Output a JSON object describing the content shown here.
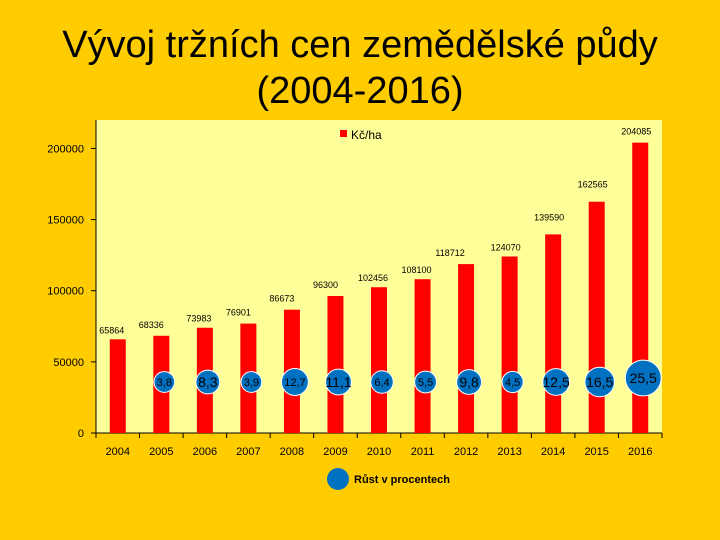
{
  "slide": {
    "title_line1": "Vývoj tržních cen zemědělské půdy",
    "title_line2": "(2004-2016)"
  },
  "colors": {
    "background": "#FFCC00",
    "plot_area": "#FFFF99",
    "bar": "#FF0000",
    "bubble": "#0070C0",
    "bubble_stroke": "#FFFFFF"
  },
  "chart_data": {
    "type": "bar",
    "categories": [
      "2004",
      "2005",
      "2006",
      "2007",
      "2008",
      "2009",
      "2010",
      "2011",
      "2012",
      "2013",
      "2014",
      "2015",
      "2016"
    ],
    "series": [
      {
        "name": "Kč/ha",
        "values": [
          65864,
          68336,
          73983,
          76901,
          86673,
          96300,
          102456,
          108100,
          118712,
          124070,
          139590,
          162565,
          204085
        ]
      }
    ],
    "value_labels": [
      "65864",
      "68336",
      "73983",
      "76901",
      "86673",
      "96300",
      "102456",
      "108100",
      "118712",
      "124070",
      "139590",
      "162565",
      "204085"
    ],
    "growth_labels": [
      "3,8",
      "8,3",
      "3,9",
      "12,7",
      "11,1",
      "6,4",
      "5,5",
      "9,8",
      "4,5",
      "12,5",
      "16,5",
      "25,5"
    ],
    "growth_legend": "Růst v procentech",
    "legend": "Kč/ha",
    "ylim": [
      0,
      220000
    ],
    "yticks": [
      0,
      50000,
      100000,
      150000,
      200000
    ],
    "ytick_labels": [
      "0",
      "50000",
      "100000",
      "150000",
      "200000"
    ],
    "xlabel": "",
    "ylabel": ""
  }
}
